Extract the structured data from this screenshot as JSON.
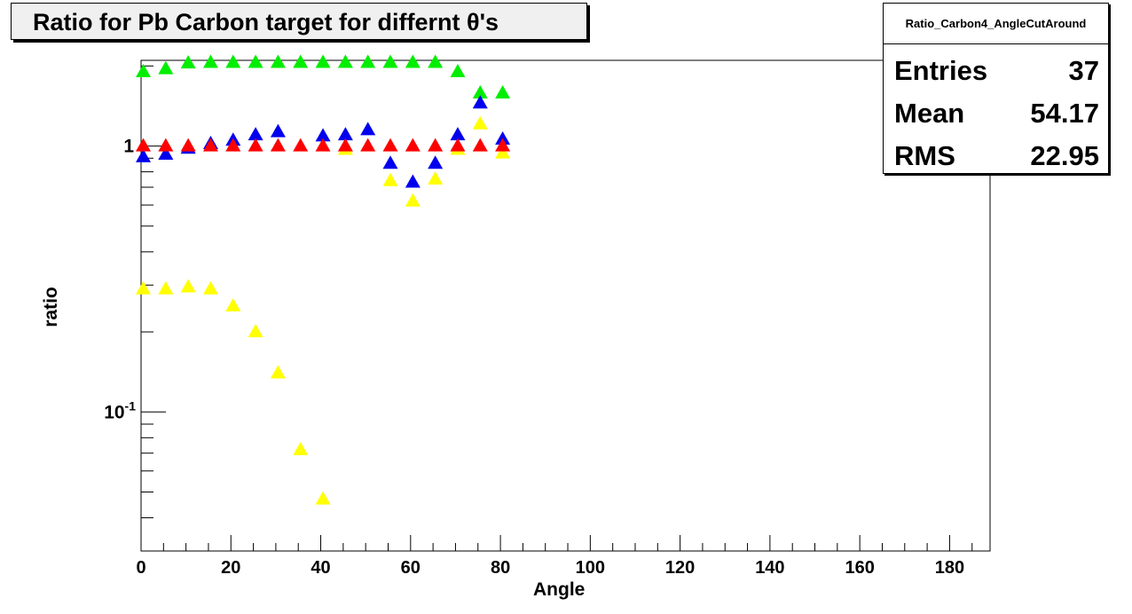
{
  "title": "Ratio for Pb Carbon target for differnt θ's",
  "stats": {
    "name": "Ratio_Carbon4_AngleCutAround",
    "rows": [
      {
        "key": "Entries",
        "value": "37"
      },
      {
        "key": "Mean",
        "value": "54.17"
      },
      {
        "key": "RMS",
        "value": "22.95"
      }
    ]
  },
  "chart_data": {
    "type": "scatter",
    "title": "Ratio for Pb Carbon target for differnt θ's",
    "xlabel": "Angle",
    "ylabel": "ratio",
    "xlim": [
      0,
      189
    ],
    "ylim": [
      0.03,
      2.1
    ],
    "log_y": true,
    "x_ticks": [
      0,
      20,
      40,
      60,
      80,
      100,
      120,
      140,
      160,
      180
    ],
    "y_tick_labels": [
      {
        "value": 1,
        "label": "1"
      },
      {
        "value": 0.1,
        "label": "10",
        "sup": "-1"
      }
    ],
    "grid": false,
    "series": [
      {
        "color": "#00ee00",
        "points": [
          [
            0.5,
            1.9
          ],
          [
            5.5,
            1.95
          ],
          [
            10.5,
            2.05
          ],
          [
            15.5,
            2.06
          ],
          [
            20.5,
            2.06
          ],
          [
            25.5,
            2.06
          ],
          [
            30.5,
            2.06
          ],
          [
            35.5,
            2.06
          ],
          [
            40.5,
            2.06
          ],
          [
            45.5,
            2.06
          ],
          [
            50.5,
            2.06
          ],
          [
            55.5,
            2.06
          ],
          [
            60.5,
            2.06
          ],
          [
            65.5,
            2.06
          ],
          [
            70.5,
            1.9
          ],
          [
            75.5,
            1.58
          ],
          [
            80.5,
            1.58
          ]
        ]
      },
      {
        "color": "#0000ee",
        "points": [
          [
            0.5,
            0.91
          ],
          [
            5.5,
            0.93
          ],
          [
            10.5,
            0.98
          ],
          [
            15.5,
            1.02
          ],
          [
            20.5,
            1.05
          ],
          [
            25.5,
            1.1
          ],
          [
            30.5,
            1.13
          ],
          [
            40.5,
            1.09
          ],
          [
            45.5,
            1.1
          ],
          [
            50.5,
            1.15
          ],
          [
            55.5,
            0.86
          ],
          [
            60.5,
            0.73
          ],
          [
            65.5,
            0.86
          ],
          [
            70.5,
            1.1
          ],
          [
            75.5,
            1.45
          ],
          [
            80.5,
            1.06
          ]
        ]
      },
      {
        "color": "#ffff00",
        "points": [
          [
            0.5,
            0.29
          ],
          [
            5.5,
            0.29
          ],
          [
            10.5,
            0.295
          ],
          [
            15.5,
            0.29
          ],
          [
            20.5,
            0.25
          ],
          [
            25.5,
            0.2
          ],
          [
            30.5,
            0.14
          ],
          [
            35.5,
            0.072
          ],
          [
            40.5,
            0.047
          ],
          [
            45.5,
            0.97
          ],
          [
            55.5,
            0.74
          ],
          [
            60.5,
            0.62
          ],
          [
            65.5,
            0.75
          ],
          [
            70.5,
            0.97
          ],
          [
            75.5,
            1.21
          ],
          [
            80.5,
            0.94
          ]
        ]
      },
      {
        "color": "#ff0000",
        "points": [
          [
            0.5,
            1.0
          ],
          [
            5.5,
            1.0
          ],
          [
            10.5,
            1.0
          ],
          [
            15.5,
            1.0
          ],
          [
            20.5,
            1.0
          ],
          [
            25.5,
            1.0
          ],
          [
            30.5,
            1.0
          ],
          [
            35.5,
            1.0
          ],
          [
            40.5,
            1.0
          ],
          [
            45.5,
            1.0
          ],
          [
            50.5,
            1.0
          ],
          [
            55.5,
            1.0
          ],
          [
            60.5,
            1.0
          ],
          [
            65.5,
            1.0
          ],
          [
            70.5,
            1.0
          ],
          [
            75.5,
            1.0
          ],
          [
            80.5,
            1.0
          ]
        ]
      }
    ]
  }
}
